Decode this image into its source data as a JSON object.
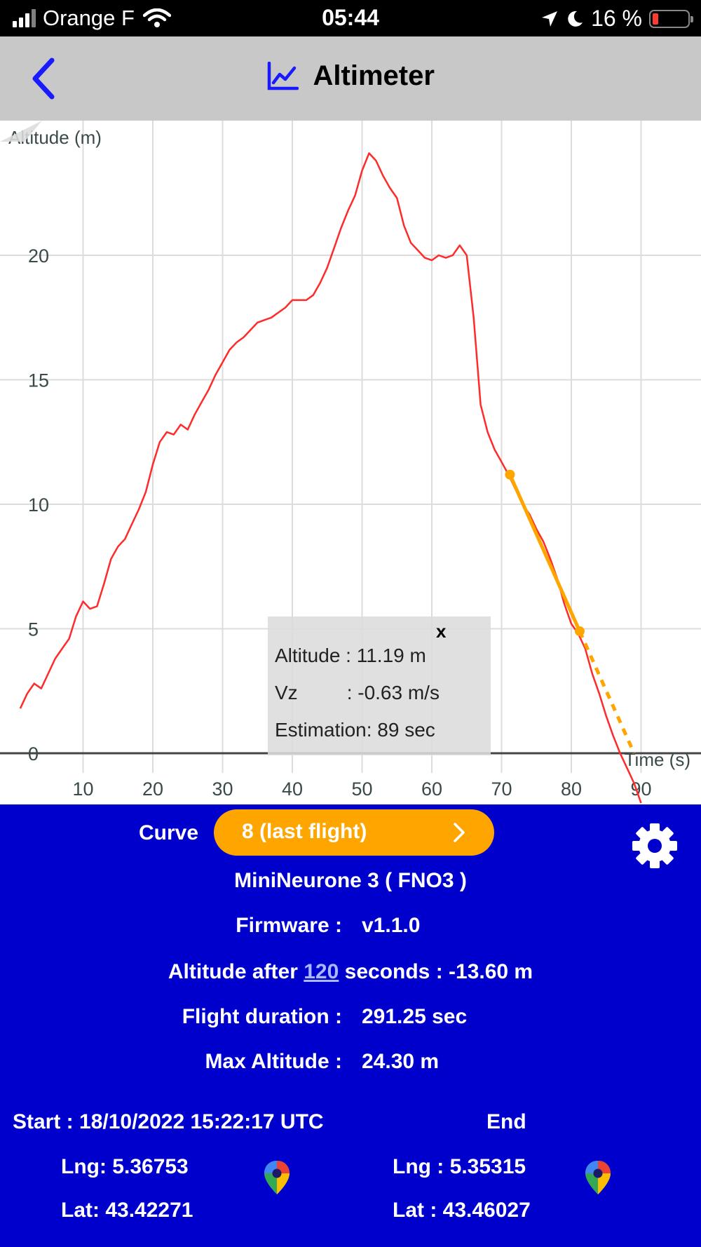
{
  "status_bar": {
    "carrier": "Orange F",
    "time": "05:44",
    "battery_text": "16 %",
    "battery_level": 0.16
  },
  "header": {
    "title": "Altimeter",
    "back_icon": "chevron-left-icon",
    "title_icon": "line-chart-icon",
    "accent_color": "#1a1aff"
  },
  "chart_data": {
    "type": "line",
    "ylabel": "Altitude (m)",
    "xlabel": "Time (s)",
    "xlim": [
      -1,
      99
    ],
    "ylim": [
      -2,
      25.5
    ],
    "x_ticks": [
      10,
      20,
      30,
      40,
      50,
      60,
      70,
      80,
      90
    ],
    "y_ticks": [
      0,
      5,
      10,
      15,
      20
    ],
    "grid": true,
    "series": [
      {
        "color": "#ff2a2a",
        "x": [
          1,
          2,
          3,
          4,
          5,
          6,
          7,
          8,
          9,
          10,
          11,
          12,
          13,
          14,
          15,
          16,
          17,
          18,
          19,
          20,
          21,
          22,
          23,
          24,
          25,
          26,
          27,
          28,
          29,
          30,
          31,
          32,
          33,
          34,
          35,
          36,
          37,
          38,
          39,
          40,
          41,
          42,
          43,
          44,
          45,
          46,
          47,
          48,
          49,
          50,
          51,
          52,
          53,
          54,
          55,
          56,
          57,
          58,
          59,
          60,
          61,
          62,
          63,
          64,
          65,
          66,
          67,
          68,
          69,
          70,
          71,
          72,
          73,
          74,
          75,
          76,
          77,
          78,
          79,
          80,
          81,
          82,
          83,
          84,
          85,
          86,
          87,
          88,
          89,
          90
        ],
        "values": [
          1.8,
          2.4,
          2.8,
          2.6,
          3.2,
          3.8,
          4.2,
          4.6,
          5.5,
          6.1,
          5.8,
          5.9,
          6.8,
          7.8,
          8.3,
          8.6,
          9.2,
          9.8,
          10.5,
          11.6,
          12.5,
          12.9,
          12.8,
          13.2,
          13.0,
          13.6,
          14.1,
          14.6,
          15.2,
          15.7,
          16.2,
          16.5,
          16.7,
          17.0,
          17.3,
          17.4,
          17.5,
          17.7,
          17.9,
          18.2,
          18.2,
          18.2,
          18.4,
          18.9,
          19.5,
          20.3,
          21.1,
          21.8,
          22.4,
          23.4,
          24.1,
          23.8,
          23.2,
          22.7,
          22.3,
          21.2,
          20.5,
          20.2,
          19.9,
          19.8,
          20.0,
          19.9,
          20.0,
          20.4,
          20.0,
          17.5,
          14.0,
          12.9,
          12.2,
          11.7,
          11.19,
          10.6,
          10.0,
          9.6,
          9.0,
          8.5,
          7.8,
          7.0,
          6.0,
          5.2,
          4.8,
          4.2,
          3.2,
          2.4,
          1.5,
          0.7,
          0.0,
          -0.6,
          -1.2,
          -2.0
        ]
      }
    ],
    "estimation_line": {
      "color": "#ffa500",
      "points": [
        [
          71.2,
          11.19
        ],
        [
          81.2,
          4.9
        ]
      ],
      "extension": [
        [
          81.2,
          4.9
        ],
        [
          89,
          0
        ]
      ]
    },
    "tooltip": {
      "close": "x",
      "altitude": "Altitude : 11.19 m",
      "vz": "Vz         : -0.63 m/s",
      "estimation": "Estimation: 89 sec"
    }
  },
  "panel": {
    "background": "#0000cc",
    "curve_label": "Curve",
    "curve_value": "8 (last flight)",
    "curve_color": "#ffa500",
    "device": "MiniNeurone 3 ( FNO3 )",
    "firmware_label": "Firmware :",
    "firmware_value": "v1.1.0",
    "altitude_after_prefix": "Altitude after",
    "altitude_after_seconds": "120",
    "altitude_after_suffix": " seconds : -13.60 m",
    "duration_label": "Flight duration :",
    "duration_value": "291.25 sec",
    "max_alt_label": "Max Altitude :",
    "max_alt_value": "24.30 m",
    "start_label": "Start : 18/10/2022 15:22:17 UTC",
    "end_label": "End",
    "start_lng": "Lng: 5.36753",
    "start_lat": "Lat: 43.42271",
    "end_lng": "Lng : 5.35315",
    "end_lat": "Lat : 43.46027",
    "settings_icon": "gear-icon",
    "map_icon": "map-pin-icon"
  }
}
